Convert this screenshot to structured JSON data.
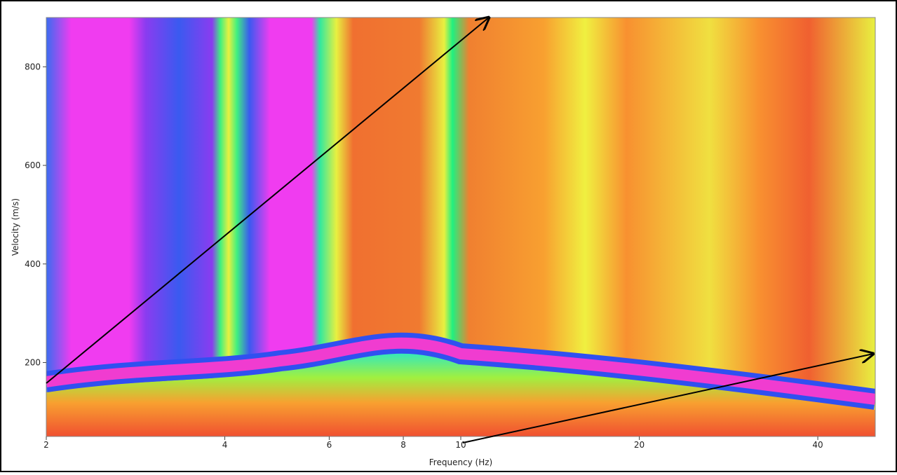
{
  "chart_data": {
    "type": "heatmap",
    "xlabel": "Frequency (Hz)",
    "ylabel": "Velocity (m/s)",
    "xlim": [
      2,
      50
    ],
    "ylim": [
      50,
      900
    ],
    "log_x": true,
    "xticks": [
      2,
      4,
      6,
      8,
      10,
      20,
      40
    ],
    "yticks": [
      200,
      400,
      600,
      800
    ]
  }
}
